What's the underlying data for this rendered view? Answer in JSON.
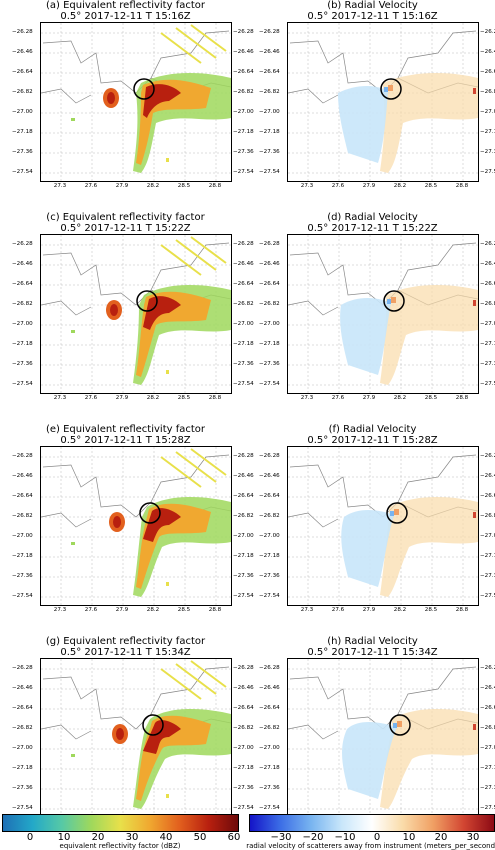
{
  "panels": [
    {
      "id": "a",
      "title": "(a) Equivalent reflectivity factor",
      "subtitle": "0.5° 2017-12-11 T 15:16Z",
      "kind": "reflectivity"
    },
    {
      "id": "b",
      "title": "(b) Radial Velocity",
      "subtitle": "0.5° 2017-12-11 T 15:16Z",
      "kind": "velocity"
    },
    {
      "id": "c",
      "title": "(c) Equivalent reflectivity factor",
      "subtitle": "0.5° 2017-12-11 T 15:22Z",
      "kind": "reflectivity"
    },
    {
      "id": "d",
      "title": "(d) Radial Velocity",
      "subtitle": "0.5° 2017-12-11 T 15:22Z",
      "kind": "velocity"
    },
    {
      "id": "e",
      "title": "(e) Equivalent reflectivity factor",
      "subtitle": "0.5° 2017-12-11 T 15:28Z",
      "kind": "reflectivity"
    },
    {
      "id": "f",
      "title": "(f) Radial Velocity",
      "subtitle": "0.5° 2017-12-11 T 15:28Z",
      "kind": "velocity"
    },
    {
      "id": "g",
      "title": "(g) Equivalent reflectivity factor",
      "subtitle": "0.5° 2017-12-11 T 15:34Z",
      "kind": "reflectivity"
    },
    {
      "id": "h",
      "title": "(h) Radial Velocity",
      "subtitle": "0.5° 2017-12-11 T 15:34Z",
      "kind": "velocity"
    }
  ],
  "y_ticks": [
    "−26.28",
    "−26.46",
    "−26.64",
    "−26.82",
    "−27.00",
    "−27.18",
    "−27.36",
    "−27.54"
  ],
  "x_ticks": [
    "27.3",
    "27.6",
    "27.9",
    "28.2",
    "28.5",
    "28.8"
  ],
  "colorbars": {
    "reflectivity": {
      "ticks": [
        "0",
        "10",
        "20",
        "30",
        "40",
        "50",
        "60"
      ],
      "label": "equivalent reflectivity factor (dBZ)",
      "colors": [
        "#1e6fb5",
        "#23a8c8",
        "#56c9a6",
        "#9fd85c",
        "#e8e04a",
        "#f0a830",
        "#e2601e",
        "#b8200f",
        "#6e0a0a"
      ]
    },
    "velocity": {
      "ticks": [
        "−30",
        "−20",
        "−10",
        "0",
        "10",
        "20",
        "30"
      ],
      "label": "radial velocity of scatterers away from instrument (meters_per_second)",
      "colors": [
        "#1414c8",
        "#3c6ee6",
        "#78b4f0",
        "#c8e6fa",
        "#ffffff",
        "#fadcaa",
        "#f0a064",
        "#d24632",
        "#8c0a14"
      ]
    }
  }
}
